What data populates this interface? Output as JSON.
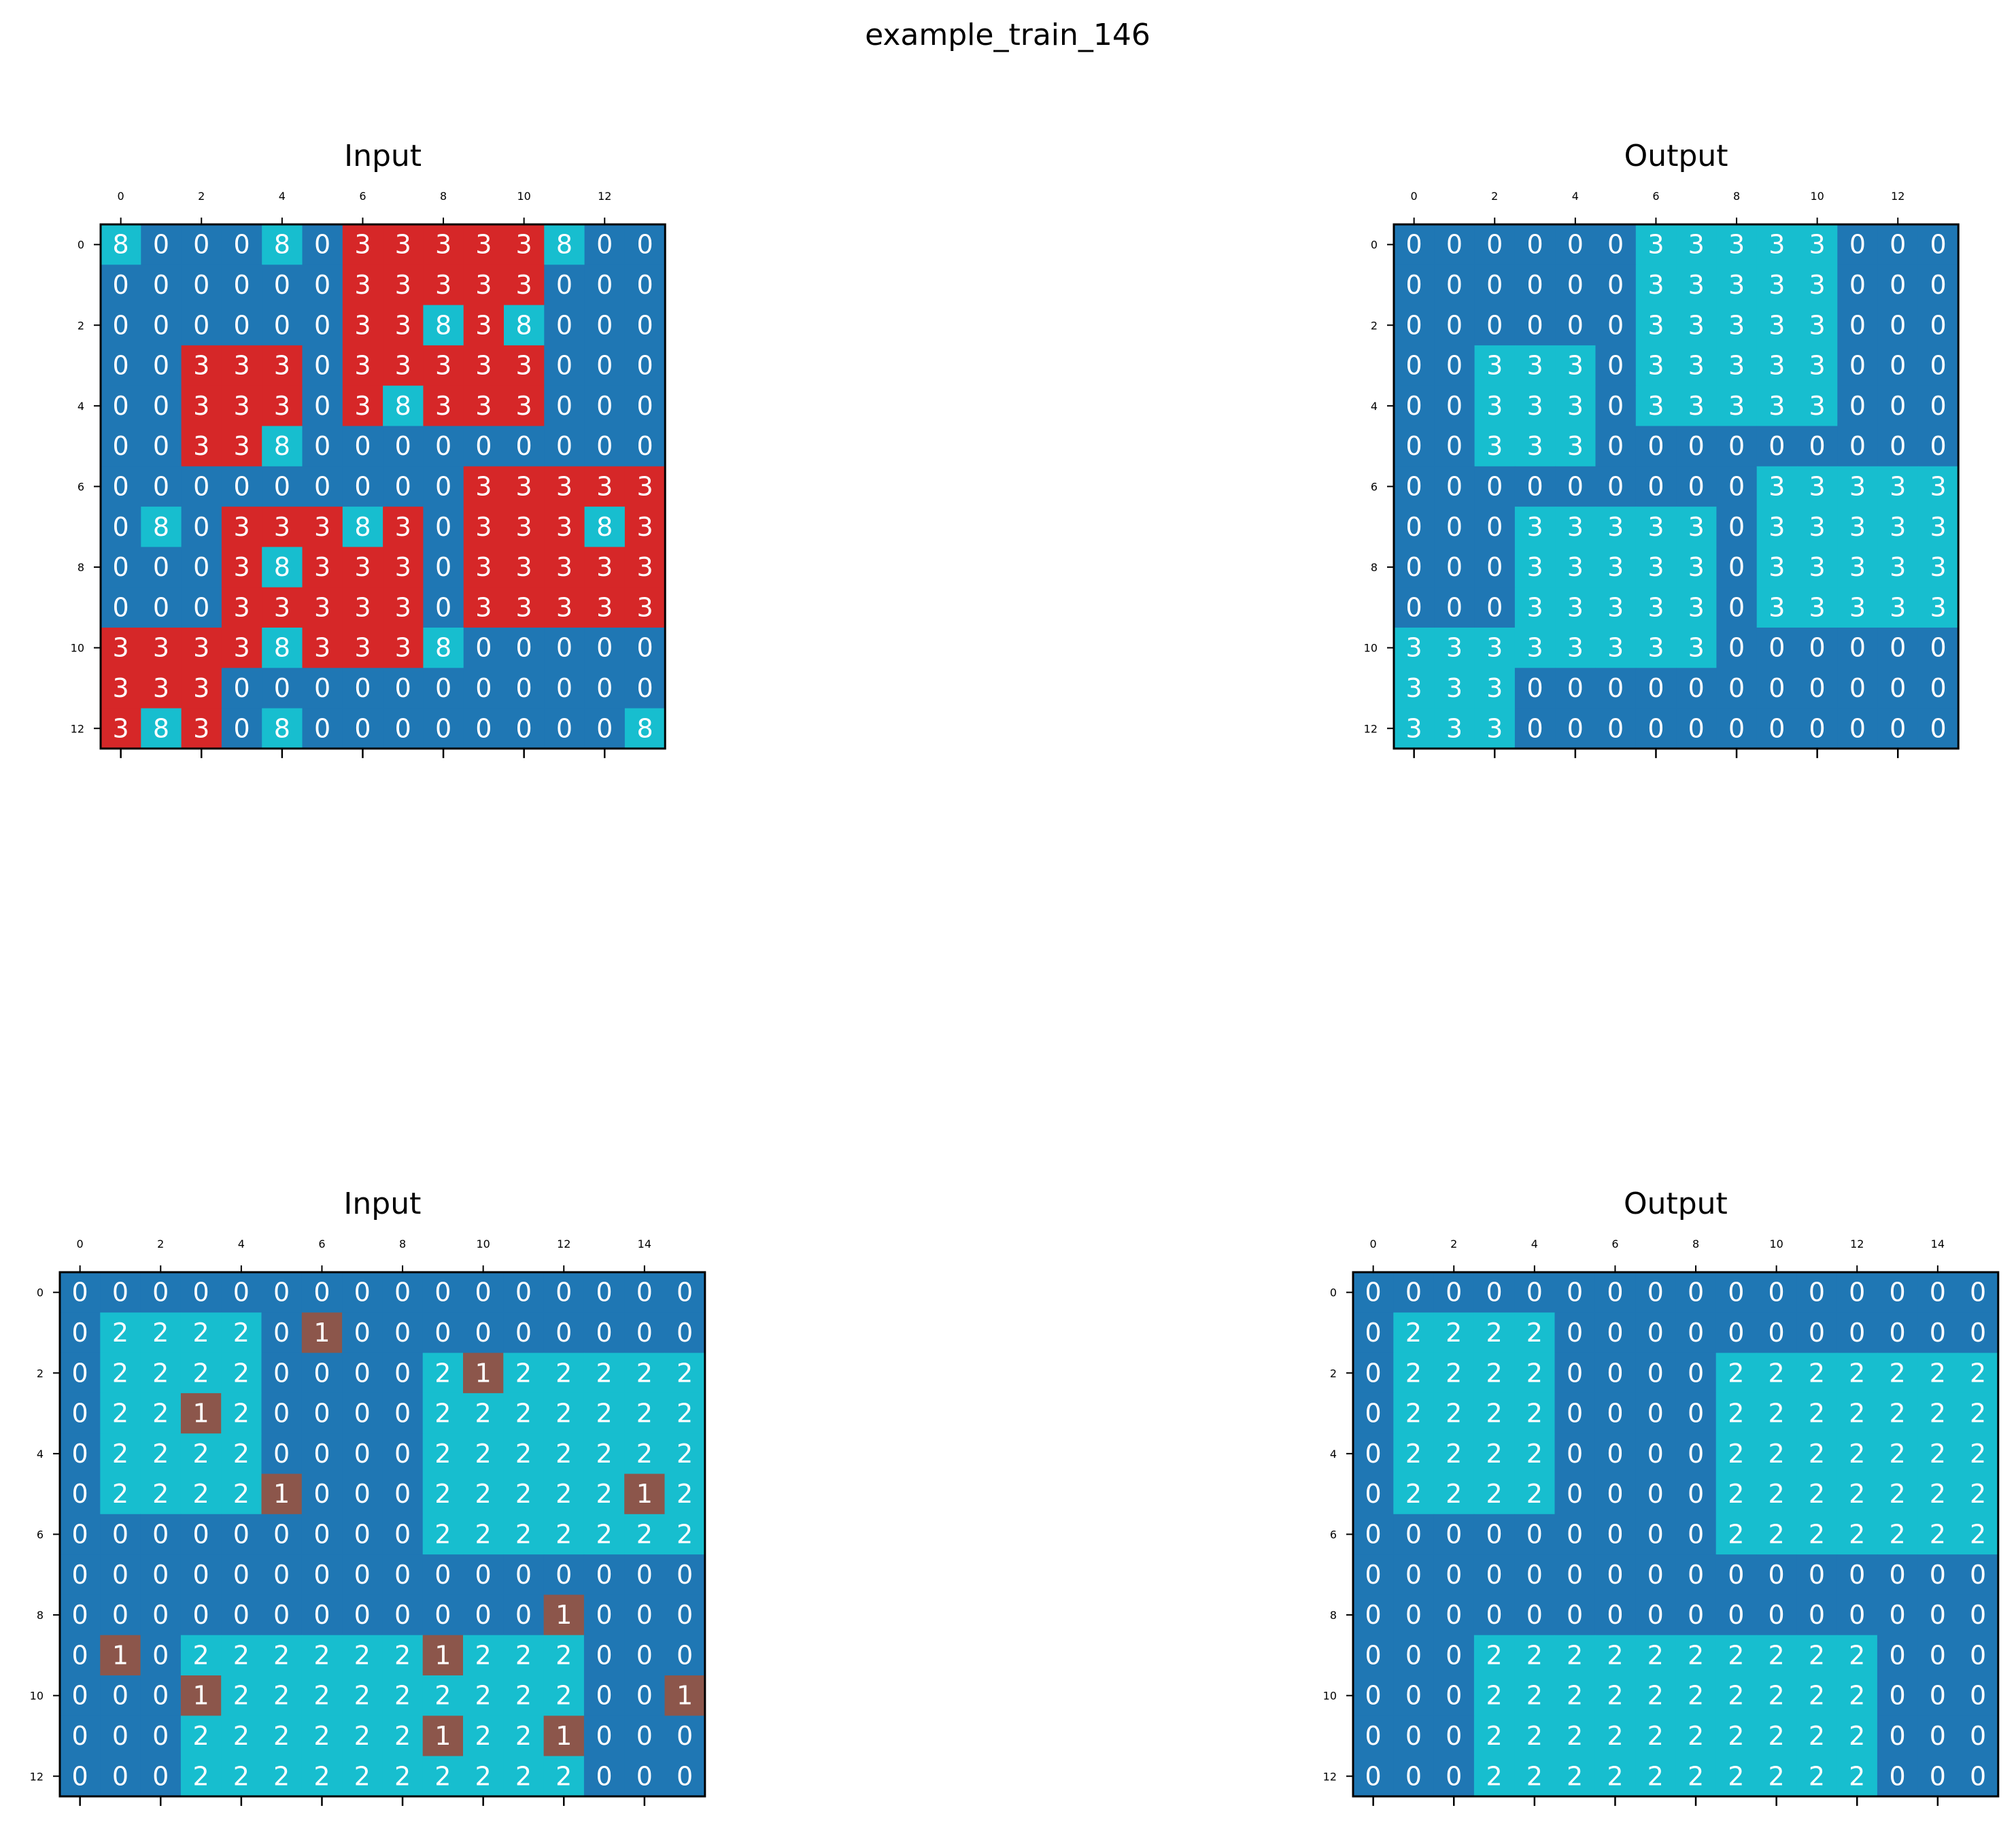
{
  "title": "example_train_146",
  "palette": {
    "0": "#1f77b4",
    "1": "#8c564b",
    "2": "#17becf",
    "3": "#d62728",
    "8": "#17becf",
    "3_output": "#17becf"
  },
  "chart_data": [
    {
      "type": "heatmap",
      "title": "Input",
      "rows": 13,
      "cols": 14,
      "xticks": [
        0,
        2,
        4,
        6,
        8,
        10,
        12
      ],
      "yticks": [
        0,
        2,
        4,
        6,
        8,
        10,
        12
      ],
      "grid": [
        [
          8,
          0,
          0,
          0,
          8,
          0,
          3,
          3,
          3,
          3,
          3,
          8,
          0,
          0
        ],
        [
          0,
          0,
          0,
          0,
          0,
          0,
          3,
          3,
          3,
          3,
          3,
          0,
          0,
          0
        ],
        [
          0,
          0,
          0,
          0,
          0,
          0,
          3,
          3,
          8,
          3,
          8,
          0,
          0,
          0
        ],
        [
          0,
          0,
          3,
          3,
          3,
          0,
          3,
          3,
          3,
          3,
          3,
          0,
          0,
          0
        ],
        [
          0,
          0,
          3,
          3,
          3,
          0,
          3,
          8,
          3,
          3,
          3,
          0,
          0,
          0
        ],
        [
          0,
          0,
          3,
          3,
          8,
          0,
          0,
          0,
          0,
          0,
          0,
          0,
          0,
          0
        ],
        [
          0,
          0,
          0,
          0,
          0,
          0,
          0,
          0,
          0,
          3,
          3,
          3,
          3,
          3
        ],
        [
          0,
          8,
          0,
          3,
          3,
          3,
          8,
          3,
          0,
          3,
          3,
          3,
          8,
          3
        ],
        [
          0,
          0,
          0,
          3,
          8,
          3,
          3,
          3,
          0,
          3,
          3,
          3,
          3,
          3
        ],
        [
          0,
          0,
          0,
          3,
          3,
          3,
          3,
          3,
          0,
          3,
          3,
          3,
          3,
          3
        ],
        [
          3,
          3,
          3,
          3,
          8,
          3,
          3,
          3,
          8,
          0,
          0,
          0,
          0,
          0
        ],
        [
          3,
          3,
          3,
          0,
          0,
          0,
          0,
          0,
          0,
          0,
          0,
          0,
          0,
          0
        ],
        [
          3,
          8,
          3,
          0,
          8,
          0,
          0,
          0,
          0,
          0,
          0,
          0,
          0,
          8
        ]
      ]
    },
    {
      "type": "heatmap",
      "title": "Output",
      "rows": 13,
      "cols": 14,
      "xticks": [
        0,
        2,
        4,
        6,
        8,
        10,
        12
      ],
      "yticks": [
        0,
        2,
        4,
        6,
        8,
        10,
        12
      ],
      "grid": [
        [
          0,
          0,
          0,
          0,
          0,
          0,
          3,
          3,
          3,
          3,
          3,
          0,
          0,
          0
        ],
        [
          0,
          0,
          0,
          0,
          0,
          0,
          3,
          3,
          3,
          3,
          3,
          0,
          0,
          0
        ],
        [
          0,
          0,
          0,
          0,
          0,
          0,
          3,
          3,
          3,
          3,
          3,
          0,
          0,
          0
        ],
        [
          0,
          0,
          3,
          3,
          3,
          0,
          3,
          3,
          3,
          3,
          3,
          0,
          0,
          0
        ],
        [
          0,
          0,
          3,
          3,
          3,
          0,
          3,
          3,
          3,
          3,
          3,
          0,
          0,
          0
        ],
        [
          0,
          0,
          3,
          3,
          3,
          0,
          0,
          0,
          0,
          0,
          0,
          0,
          0,
          0
        ],
        [
          0,
          0,
          0,
          0,
          0,
          0,
          0,
          0,
          0,
          3,
          3,
          3,
          3,
          3
        ],
        [
          0,
          0,
          0,
          3,
          3,
          3,
          3,
          3,
          0,
          3,
          3,
          3,
          3,
          3
        ],
        [
          0,
          0,
          0,
          3,
          3,
          3,
          3,
          3,
          0,
          3,
          3,
          3,
          3,
          3
        ],
        [
          0,
          0,
          0,
          3,
          3,
          3,
          3,
          3,
          0,
          3,
          3,
          3,
          3,
          3
        ],
        [
          3,
          3,
          3,
          3,
          3,
          3,
          3,
          3,
          0,
          0,
          0,
          0,
          0,
          0
        ],
        [
          3,
          3,
          3,
          0,
          0,
          0,
          0,
          0,
          0,
          0,
          0,
          0,
          0,
          0
        ],
        [
          3,
          3,
          3,
          0,
          0,
          0,
          0,
          0,
          0,
          0,
          0,
          0,
          0,
          0
        ]
      ]
    },
    {
      "type": "heatmap",
      "title": "Input",
      "rows": 13,
      "cols": 16,
      "xticks": [
        0,
        2,
        4,
        6,
        8,
        10,
        12,
        14
      ],
      "yticks": [
        0,
        2,
        4,
        6,
        8,
        10,
        12
      ],
      "grid": [
        [
          0,
          0,
          0,
          0,
          0,
          0,
          0,
          0,
          0,
          0,
          0,
          0,
          0,
          0,
          0,
          0
        ],
        [
          0,
          2,
          2,
          2,
          2,
          0,
          1,
          0,
          0,
          0,
          0,
          0,
          0,
          0,
          0,
          0
        ],
        [
          0,
          2,
          2,
          2,
          2,
          0,
          0,
          0,
          0,
          2,
          1,
          2,
          2,
          2,
          2,
          2
        ],
        [
          0,
          2,
          2,
          1,
          2,
          0,
          0,
          0,
          0,
          2,
          2,
          2,
          2,
          2,
          2,
          2
        ],
        [
          0,
          2,
          2,
          2,
          2,
          0,
          0,
          0,
          0,
          2,
          2,
          2,
          2,
          2,
          2,
          2
        ],
        [
          0,
          2,
          2,
          2,
          2,
          1,
          0,
          0,
          0,
          2,
          2,
          2,
          2,
          2,
          1,
          2
        ],
        [
          0,
          0,
          0,
          0,
          0,
          0,
          0,
          0,
          0,
          2,
          2,
          2,
          2,
          2,
          2,
          2
        ],
        [
          0,
          0,
          0,
          0,
          0,
          0,
          0,
          0,
          0,
          0,
          0,
          0,
          0,
          0,
          0,
          0
        ],
        [
          0,
          0,
          0,
          0,
          0,
          0,
          0,
          0,
          0,
          0,
          0,
          0,
          1,
          0,
          0,
          0
        ],
        [
          0,
          1,
          0,
          2,
          2,
          2,
          2,
          2,
          2,
          1,
          2,
          2,
          2,
          0,
          0,
          0
        ],
        [
          0,
          0,
          0,
          1,
          2,
          2,
          2,
          2,
          2,
          2,
          2,
          2,
          2,
          0,
          0,
          1
        ],
        [
          0,
          0,
          0,
          2,
          2,
          2,
          2,
          2,
          2,
          1,
          2,
          2,
          1,
          0,
          0,
          0
        ],
        [
          0,
          0,
          0,
          2,
          2,
          2,
          2,
          2,
          2,
          2,
          2,
          2,
          2,
          0,
          0,
          0
        ]
      ]
    },
    {
      "type": "heatmap",
      "title": "Output",
      "rows": 13,
      "cols": 16,
      "xticks": [
        0,
        2,
        4,
        6,
        8,
        10,
        12,
        14
      ],
      "yticks": [
        0,
        2,
        4,
        6,
        8,
        10,
        12
      ],
      "grid": [
        [
          0,
          0,
          0,
          0,
          0,
          0,
          0,
          0,
          0,
          0,
          0,
          0,
          0,
          0,
          0,
          0
        ],
        [
          0,
          2,
          2,
          2,
          2,
          0,
          0,
          0,
          0,
          0,
          0,
          0,
          0,
          0,
          0,
          0
        ],
        [
          0,
          2,
          2,
          2,
          2,
          0,
          0,
          0,
          0,
          2,
          2,
          2,
          2,
          2,
          2,
          2
        ],
        [
          0,
          2,
          2,
          2,
          2,
          0,
          0,
          0,
          0,
          2,
          2,
          2,
          2,
          2,
          2,
          2
        ],
        [
          0,
          2,
          2,
          2,
          2,
          0,
          0,
          0,
          0,
          2,
          2,
          2,
          2,
          2,
          2,
          2
        ],
        [
          0,
          2,
          2,
          2,
          2,
          0,
          0,
          0,
          0,
          2,
          2,
          2,
          2,
          2,
          2,
          2
        ],
        [
          0,
          0,
          0,
          0,
          0,
          0,
          0,
          0,
          0,
          2,
          2,
          2,
          2,
          2,
          2,
          2
        ],
        [
          0,
          0,
          0,
          0,
          0,
          0,
          0,
          0,
          0,
          0,
          0,
          0,
          0,
          0,
          0,
          0
        ],
        [
          0,
          0,
          0,
          0,
          0,
          0,
          0,
          0,
          0,
          0,
          0,
          0,
          0,
          0,
          0,
          0
        ],
        [
          0,
          0,
          0,
          2,
          2,
          2,
          2,
          2,
          2,
          2,
          2,
          2,
          2,
          0,
          0,
          0
        ],
        [
          0,
          0,
          0,
          2,
          2,
          2,
          2,
          2,
          2,
          2,
          2,
          2,
          2,
          0,
          0,
          0
        ],
        [
          0,
          0,
          0,
          2,
          2,
          2,
          2,
          2,
          2,
          2,
          2,
          2,
          2,
          0,
          0,
          0
        ],
        [
          0,
          0,
          0,
          2,
          2,
          2,
          2,
          2,
          2,
          2,
          2,
          2,
          2,
          0,
          0,
          0
        ]
      ]
    }
  ]
}
